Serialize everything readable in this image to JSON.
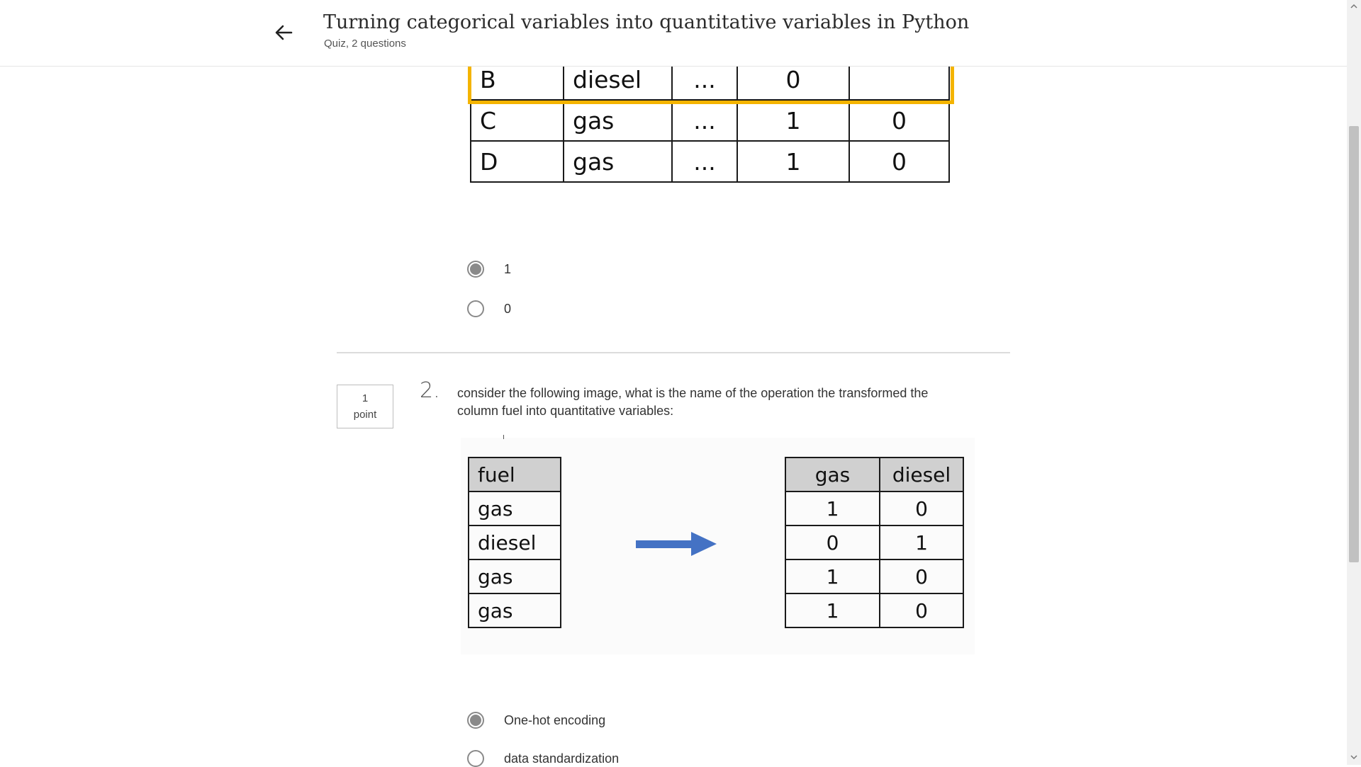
{
  "header": {
    "title": "Turning categorical variables into quantitative variables in Python",
    "subtitle": "Quiz, 2 questions",
    "back_icon": "arrow-left-icon"
  },
  "question1": {
    "table_rows": [
      [
        "B",
        "diesel",
        "...",
        "0",
        ""
      ],
      [
        "C",
        "gas",
        "...",
        "1",
        "0"
      ],
      [
        "D",
        "gas",
        "...",
        "1",
        "0"
      ]
    ],
    "options": [
      {
        "label": "1",
        "selected": true
      },
      {
        "label": "0",
        "selected": false
      }
    ]
  },
  "question2": {
    "points_value": "1",
    "points_unit": "point",
    "number": "2.",
    "text": "consider the following image, what is the name of the operation the transformed the column fuel into quantitative variables:",
    "fuel_table": {
      "header": "fuel",
      "values": [
        "gas",
        "diesel",
        "gas",
        "gas"
      ]
    },
    "dummy_table": {
      "headers": [
        "gas",
        "diesel"
      ],
      "rows": [
        [
          "1",
          "0"
        ],
        [
          "0",
          "1"
        ],
        [
          "1",
          "0"
        ],
        [
          "1",
          "0"
        ]
      ]
    },
    "arrow_color": "#4472c4",
    "options": [
      {
        "label": "One-hot encoding",
        "selected": true
      },
      {
        "label": "data standardization",
        "selected": false
      }
    ]
  },
  "colors": {
    "highlight": "#f4b400",
    "radio_selected": "#8a8a8a"
  }
}
